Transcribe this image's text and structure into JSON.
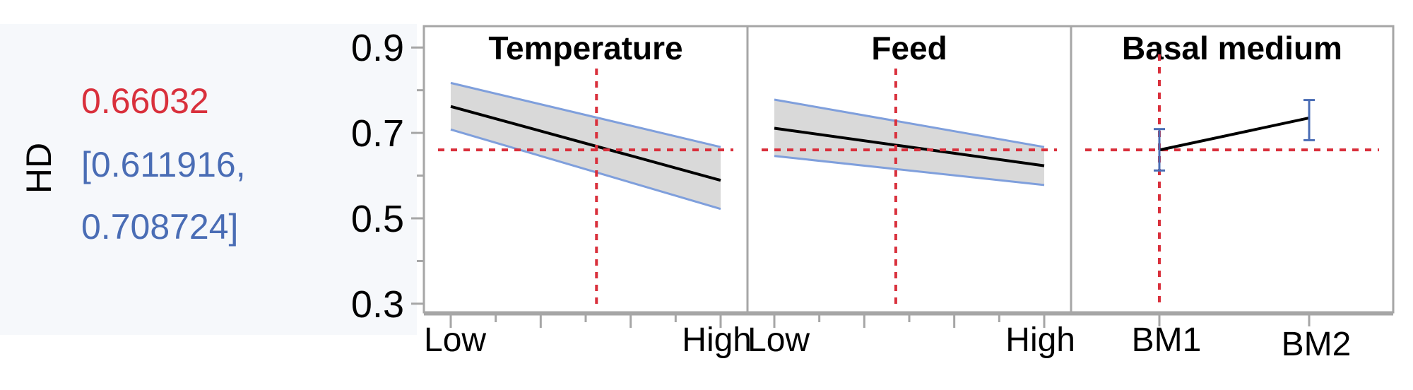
{
  "colors": {
    "current_value": "#d9303c",
    "interval": "#4a6db5",
    "band_fill": "#d9d9d9",
    "band_edge": "#7f9fdc",
    "trace": "#000000",
    "crosshair": "#d9303c",
    "frame": "#a6a6a6",
    "readout_bg": "#f6f8fb"
  },
  "readout": {
    "response": "HD",
    "predicted": "0.66032",
    "ci_line1": "[0.611916,",
    "ci_line2": "0.708724]"
  },
  "chart_data": {
    "type": "line",
    "subtype": "prediction profiler",
    "ylabel": "HD",
    "ylim": [
      0.28,
      0.95
    ],
    "yticks": [
      0.3,
      0.5,
      0.7,
      0.9
    ],
    "current_response": 0.66032,
    "panels": [
      {
        "factor": "Temperature",
        "kind": "continuous",
        "x_tick_labels": [
          "Low",
          "High"
        ],
        "x": [
          0,
          1
        ],
        "current_x": 0.54,
        "predicted": [
          0.762,
          0.589
        ],
        "lower": [
          0.708,
          0.522
        ],
        "upper": [
          0.817,
          0.667
        ]
      },
      {
        "factor": "Feed",
        "kind": "continuous",
        "x_tick_labels": [
          "Low",
          "High"
        ],
        "x": [
          0,
          1
        ],
        "current_x": 0.45,
        "predicted": [
          0.711,
          0.623
        ],
        "lower": [
          0.646,
          0.578
        ],
        "upper": [
          0.778,
          0.667
        ]
      },
      {
        "factor": "Basal medium",
        "kind": "categorical",
        "categories": [
          "BM1",
          "BM2"
        ],
        "current_category": "BM1",
        "predicted": [
          0.66,
          0.735
        ],
        "lower": [
          0.612,
          0.683
        ],
        "upper": [
          0.709,
          0.777
        ]
      }
    ]
  }
}
